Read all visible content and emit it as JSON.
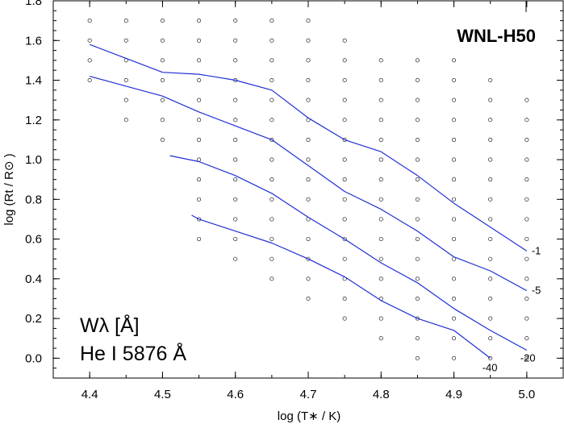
{
  "chart_data": {
    "type": "line",
    "title": "WNL-H50",
    "xlabel": "log (T∗ / K)",
    "ylabel": "log (Rt / R⊙ )",
    "xlim": [
      4.35,
      5.05
    ],
    "ylim": [
      -0.1,
      1.8
    ],
    "xticks": [
      "4.4",
      "4.5",
      "4.6",
      "4.7",
      "4.8",
      "4.9",
      "5.0"
    ],
    "yticks": [
      "0.0",
      "0.2",
      "0.4",
      "0.6",
      "0.8",
      "1.0",
      "1.2",
      "1.4",
      "1.6",
      "1.8"
    ],
    "annotation": [
      "Wλ [Å]",
      "He I 5876 Å"
    ],
    "line_color": "#1f2fd6",
    "series": [
      {
        "label": "-1",
        "x": [
          4.4,
          4.45,
          4.5,
          4.55,
          4.6,
          4.65,
          4.7,
          4.75,
          4.8,
          4.85,
          4.9,
          4.95,
          5.0
        ],
        "y": [
          1.58,
          1.51,
          1.44,
          1.43,
          1.4,
          1.35,
          1.21,
          1.1,
          1.04,
          0.92,
          0.78,
          0.66,
          0.54
        ]
      },
      {
        "label": "-5",
        "x": [
          4.4,
          4.45,
          4.5,
          4.55,
          4.6,
          4.65,
          4.7,
          4.75,
          4.8,
          4.85,
          4.9,
          4.95,
          5.0
        ],
        "y": [
          1.42,
          1.37,
          1.32,
          1.24,
          1.17,
          1.1,
          0.97,
          0.84,
          0.75,
          0.64,
          0.51,
          0.44,
          0.34
        ]
      },
      {
        "label": "-20",
        "x": [
          4.51,
          4.55,
          4.6,
          4.65,
          4.7,
          4.75,
          4.8,
          4.85,
          4.9,
          4.95,
          5.0
        ],
        "y": [
          1.02,
          0.99,
          0.92,
          0.83,
          0.71,
          0.6,
          0.48,
          0.38,
          0.25,
          0.14,
          0.04
        ]
      },
      {
        "label": "-40",
        "x": [
          4.54,
          4.55,
          4.6,
          4.65,
          4.7,
          4.75,
          4.8,
          4.85,
          4.9,
          4.95
        ],
        "y": [
          0.72,
          0.7,
          0.64,
          0.58,
          0.5,
          0.41,
          0.29,
          0.2,
          0.14,
          0.0
        ]
      }
    ],
    "grid_points": {
      "columns": [
        {
          "x": 4.4,
          "y": [
            1.4,
            1.5,
            1.6,
            1.7
          ]
        },
        {
          "x": 4.45,
          "y": [
            1.2,
            1.3,
            1.4,
            1.5,
            1.6,
            1.7
          ]
        },
        {
          "x": 4.5,
          "y": [
            1.1,
            1.2,
            1.3,
            1.4,
            1.5,
            1.6,
            1.7
          ]
        },
        {
          "x": 4.55,
          "y": [
            0.6,
            0.7,
            0.8,
            0.9,
            1.0,
            1.1,
            1.2,
            1.3,
            1.4,
            1.5,
            1.6,
            1.7
          ]
        },
        {
          "x": 4.6,
          "y": [
            0.5,
            0.6,
            0.7,
            0.8,
            0.9,
            1.0,
            1.1,
            1.2,
            1.3,
            1.4,
            1.5,
            1.6,
            1.7
          ]
        },
        {
          "x": 4.65,
          "y": [
            0.4,
            0.5,
            0.6,
            0.7,
            0.8,
            0.9,
            1.0,
            1.1,
            1.2,
            1.3,
            1.4,
            1.5,
            1.6,
            1.7
          ]
        },
        {
          "x": 4.7,
          "y": [
            0.3,
            0.4,
            0.5,
            0.6,
            0.7,
            0.8,
            0.9,
            1.0,
            1.1,
            1.2,
            1.3,
            1.4,
            1.5,
            1.6,
            1.7
          ]
        },
        {
          "x": 4.75,
          "y": [
            0.2,
            0.3,
            0.4,
            0.5,
            0.6,
            0.7,
            0.8,
            0.9,
            1.0,
            1.1,
            1.2,
            1.3,
            1.4,
            1.5,
            1.6
          ]
        },
        {
          "x": 4.8,
          "y": [
            0.1,
            0.2,
            0.3,
            0.4,
            0.5,
            0.6,
            0.7,
            0.8,
            0.9,
            1.0,
            1.1,
            1.2,
            1.3,
            1.4,
            1.5
          ]
        },
        {
          "x": 4.85,
          "y": [
            0.0,
            0.1,
            0.2,
            0.3,
            0.4,
            0.5,
            0.6,
            0.7,
            0.8,
            0.9,
            1.0,
            1.1,
            1.2,
            1.3,
            1.4,
            1.5
          ]
        },
        {
          "x": 4.9,
          "y": [
            0.0,
            0.1,
            0.2,
            0.3,
            0.4,
            0.5,
            0.6,
            0.7,
            0.8,
            0.9,
            1.0,
            1.1,
            1.2,
            1.3,
            1.4,
            1.5
          ]
        },
        {
          "x": 4.95,
          "y": [
            0.0,
            0.1,
            0.2,
            0.3,
            0.4,
            0.5,
            0.6,
            0.7,
            0.8,
            0.9,
            1.0,
            1.1,
            1.2,
            1.3,
            1.4
          ]
        },
        {
          "x": 5.0,
          "y": [
            0.0,
            0.1,
            0.2,
            0.3,
            0.4,
            0.5,
            0.6,
            0.7,
            0.8,
            0.9,
            1.0,
            1.1,
            1.2,
            1.3
          ]
        }
      ]
    },
    "grid": false,
    "legend": "none"
  }
}
